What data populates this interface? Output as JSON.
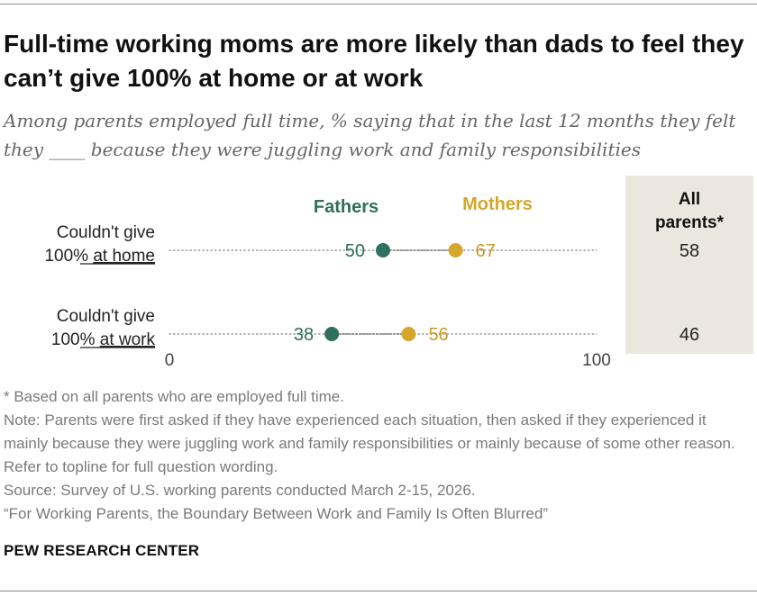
{
  "title": "Full-time working moms are more likely than dads to feel they can’t give 100% at home or at work",
  "subtitle": "Among parents employed full time, % saying that in the last 12 months they felt they ____ because they were juggling work and family responsibilities",
  "colors": {
    "fathers": "#2e6f5e",
    "mothers": "#d4a72c",
    "all_parents_bg": "#ece7de"
  },
  "chart_data": {
    "type": "dot",
    "xlim": [
      0,
      100
    ],
    "x_ticks": [
      "0",
      "100"
    ],
    "legend": [
      "Fathers",
      "Mothers"
    ],
    "categories": [
      {
        "label_line1": "Couldn't give",
        "label_prefix": "100% ",
        "label_underlined": "at home",
        "fathers": 50,
        "mothers": 67,
        "all_parents": 58
      },
      {
        "label_line1": "Couldn't give",
        "label_prefix": "100% ",
        "label_underlined": "at work",
        "fathers": 38,
        "mothers": 56,
        "all_parents": 46
      }
    ],
    "series": [
      {
        "name": "Fathers",
        "values": [
          50,
          38
        ]
      },
      {
        "name": "Mothers",
        "values": [
          67,
          56
        ]
      }
    ],
    "all_parents_header_line1": "All",
    "all_parents_header_line2": "parents*"
  },
  "notes": [
    "* Based on all parents who are employed full time.",
    "Note: Parents were first asked if they have experienced each situation, then asked if they experienced it mainly because they were juggling work and family responsibilities or mainly because of some other reason. Refer to topline for full question wording.",
    "Source: Survey of U.S. working parents conducted March 2-15, 2026.",
    "“For Working Parents, the Boundary Between Work and Family Is Often Blurred”"
  ],
  "brand": "PEW RESEARCH CENTER"
}
